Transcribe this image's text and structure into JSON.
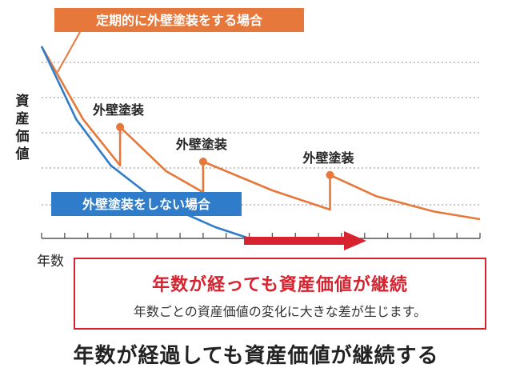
{
  "chart_data": {
    "type": "line",
    "ylabel": "資産価値",
    "xlabel": "年数",
    "colors": {
      "painted": "#e5783a",
      "unpainted": "#2f7ccb",
      "arrow": "#d7232f",
      "axis": "#555555"
    },
    "series": [
      {
        "name": "定期的に外壁塗装をする場合",
        "points": [
          [
            0,
            100
          ],
          [
            1.8,
            62
          ],
          [
            3.4,
            38
          ],
          [
            3.4,
            58
          ],
          [
            5.4,
            35
          ],
          [
            7.0,
            24
          ],
          [
            7.0,
            40
          ],
          [
            10.0,
            25
          ],
          [
            12.5,
            15
          ],
          [
            12.5,
            33
          ],
          [
            14.5,
            22
          ],
          [
            17.0,
            14
          ],
          [
            19.0,
            10
          ]
        ]
      },
      {
        "name": "外壁塗装をしない場合",
        "points": [
          [
            0,
            100
          ],
          [
            1.5,
            62
          ],
          [
            3.0,
            38
          ],
          [
            4.5,
            24
          ],
          [
            6.0,
            14
          ],
          [
            7.5,
            6
          ],
          [
            9.0,
            0
          ]
        ]
      }
    ],
    "annotations": [
      {
        "text": "外壁塗装",
        "x": 3.4,
        "y": 58
      },
      {
        "text": "外壁塗装",
        "x": 7.0,
        "y": 40
      },
      {
        "text": "外壁塗装",
        "x": 12.5,
        "y": 33
      }
    ]
  },
  "caption": {
    "heading": "年数が経っても資産価値が継続",
    "subtext": "年数ごとの資産価値の変化に大きな差が生じます。"
  },
  "title": "年数が経過しても資産価値が継続する"
}
